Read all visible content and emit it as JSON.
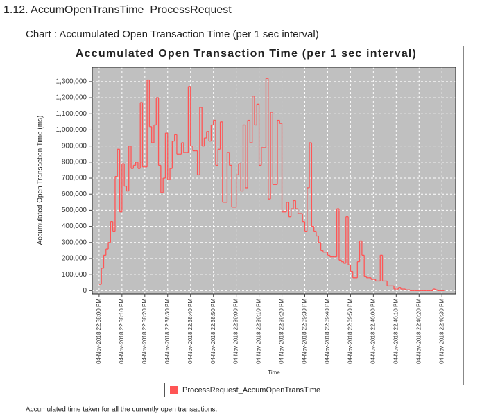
{
  "header": {
    "title": "1.12. AccumOpenTransTime_ProcessRequest"
  },
  "chart_heading": "Chart : Accumulated Open Transaction Time (per 1 sec interval)",
  "chart_data": {
    "type": "step",
    "title": "Accumulated Open Transaction Time (per 1 sec interval)",
    "x_label": "Time",
    "y_label": "Accumulated Open Transaction Time (ms)",
    "x": [
      "04-Nov-2018 22:38:00 PM",
      "04-Nov-2018 22:38:01 PM",
      "04-Nov-2018 22:38:02 PM",
      "04-Nov-2018 22:38:03 PM",
      "04-Nov-2018 22:38:04 PM",
      "04-Nov-2018 22:38:05 PM",
      "04-Nov-2018 22:38:06 PM",
      "04-Nov-2018 22:38:07 PM",
      "04-Nov-2018 22:38:08 PM",
      "04-Nov-2018 22:38:09 PM",
      "04-Nov-2018 22:38:10 PM",
      "04-Nov-2018 22:38:11 PM",
      "04-Nov-2018 22:38:12 PM",
      "04-Nov-2018 22:38:13 PM",
      "04-Nov-2018 22:38:14 PM",
      "04-Nov-2018 22:38:15 PM",
      "04-Nov-2018 22:38:16 PM",
      "04-Nov-2018 22:38:17 PM",
      "04-Nov-2018 22:38:18 PM",
      "04-Nov-2018 22:38:19 PM",
      "04-Nov-2018 22:38:20 PM",
      "04-Nov-2018 22:38:21 PM",
      "04-Nov-2018 22:38:22 PM",
      "04-Nov-2018 22:38:23 PM",
      "04-Nov-2018 22:38:24 PM",
      "04-Nov-2018 22:38:25 PM",
      "04-Nov-2018 22:38:26 PM",
      "04-Nov-2018 22:38:27 PM",
      "04-Nov-2018 22:38:28 PM",
      "04-Nov-2018 22:38:29 PM",
      "04-Nov-2018 22:38:30 PM",
      "04-Nov-2018 22:38:31 PM",
      "04-Nov-2018 22:38:32 PM",
      "04-Nov-2018 22:38:33 PM",
      "04-Nov-2018 22:38:34 PM",
      "04-Nov-2018 22:38:35 PM",
      "04-Nov-2018 22:38:36 PM",
      "04-Nov-2018 22:38:37 PM",
      "04-Nov-2018 22:38:38 PM",
      "04-Nov-2018 22:38:39 PM",
      "04-Nov-2018 22:38:40 PM",
      "04-Nov-2018 22:38:41 PM",
      "04-Nov-2018 22:38:42 PM",
      "04-Nov-2018 22:38:43 PM",
      "04-Nov-2018 22:38:44 PM",
      "04-Nov-2018 22:38:45 PM",
      "04-Nov-2018 22:38:46 PM",
      "04-Nov-2018 22:38:47 PM",
      "04-Nov-2018 22:38:48 PM",
      "04-Nov-2018 22:38:49 PM",
      "04-Nov-2018 22:38:50 PM",
      "04-Nov-2018 22:38:51 PM",
      "04-Nov-2018 22:38:52 PM",
      "04-Nov-2018 22:38:53 PM",
      "04-Nov-2018 22:38:54 PM",
      "04-Nov-2018 22:38:55 PM",
      "04-Nov-2018 22:38:56 PM",
      "04-Nov-2018 22:38:57 PM",
      "04-Nov-2018 22:38:58 PM",
      "04-Nov-2018 22:38:59 PM",
      "04-Nov-2018 22:39:00 PM",
      "04-Nov-2018 22:39:01 PM",
      "04-Nov-2018 22:39:02 PM",
      "04-Nov-2018 22:39:03 PM",
      "04-Nov-2018 22:39:04 PM",
      "04-Nov-2018 22:39:05 PM",
      "04-Nov-2018 22:39:06 PM",
      "04-Nov-2018 22:39:07 PM",
      "04-Nov-2018 22:39:08 PM",
      "04-Nov-2018 22:39:09 PM",
      "04-Nov-2018 22:39:10 PM",
      "04-Nov-2018 22:39:11 PM",
      "04-Nov-2018 22:39:12 PM",
      "04-Nov-2018 22:39:13 PM",
      "04-Nov-2018 22:39:14 PM",
      "04-Nov-2018 22:39:15 PM",
      "04-Nov-2018 22:39:16 PM",
      "04-Nov-2018 22:39:17 PM",
      "04-Nov-2018 22:39:18 PM",
      "04-Nov-2018 22:39:19 PM",
      "04-Nov-2018 22:39:20 PM",
      "04-Nov-2018 22:39:21 PM",
      "04-Nov-2018 22:39:22 PM",
      "04-Nov-2018 22:39:23 PM",
      "04-Nov-2018 22:39:24 PM",
      "04-Nov-2018 22:39:25 PM",
      "04-Nov-2018 22:39:26 PM",
      "04-Nov-2018 22:39:27 PM",
      "04-Nov-2018 22:39:28 PM",
      "04-Nov-2018 22:39:29 PM",
      "04-Nov-2018 22:39:30 PM",
      "04-Nov-2018 22:39:31 PM",
      "04-Nov-2018 22:39:32 PM",
      "04-Nov-2018 22:39:33 PM",
      "04-Nov-2018 22:39:34 PM",
      "04-Nov-2018 22:39:35 PM",
      "04-Nov-2018 22:39:36 PM",
      "04-Nov-2018 22:39:37 PM",
      "04-Nov-2018 22:39:38 PM",
      "04-Nov-2018 22:39:39 PM",
      "04-Nov-2018 22:39:40 PM",
      "04-Nov-2018 22:39:41 PM",
      "04-Nov-2018 22:39:42 PM",
      "04-Nov-2018 22:39:43 PM",
      "04-Nov-2018 22:39:44 PM",
      "04-Nov-2018 22:39:45 PM",
      "04-Nov-2018 22:39:46 PM",
      "04-Nov-2018 22:39:47 PM",
      "04-Nov-2018 22:39:48 PM",
      "04-Nov-2018 22:39:49 PM",
      "04-Nov-2018 22:39:50 PM",
      "04-Nov-2018 22:39:51 PM",
      "04-Nov-2018 22:39:52 PM",
      "04-Nov-2018 22:39:53 PM",
      "04-Nov-2018 22:39:54 PM",
      "04-Nov-2018 22:39:55 PM",
      "04-Nov-2018 22:39:56 PM",
      "04-Nov-2018 22:39:57 PM",
      "04-Nov-2018 22:39:58 PM",
      "04-Nov-2018 22:39:59 PM",
      "04-Nov-2018 22:40:00 PM",
      "04-Nov-2018 22:40:01 PM",
      "04-Nov-2018 22:40:02 PM",
      "04-Nov-2018 22:40:03 PM",
      "04-Nov-2018 22:40:04 PM",
      "04-Nov-2018 22:40:05 PM",
      "04-Nov-2018 22:40:06 PM",
      "04-Nov-2018 22:40:07 PM",
      "04-Nov-2018 22:40:08 PM",
      "04-Nov-2018 22:40:09 PM",
      "04-Nov-2018 22:40:10 PM",
      "04-Nov-2018 22:40:11 PM",
      "04-Nov-2018 22:40:12 PM",
      "04-Nov-2018 22:40:13 PM",
      "04-Nov-2018 22:40:14 PM",
      "04-Nov-2018 22:40:15 PM",
      "04-Nov-2018 22:40:16 PM",
      "04-Nov-2018 22:40:17 PM",
      "04-Nov-2018 22:40:18 PM",
      "04-Nov-2018 22:40:19 PM",
      "04-Nov-2018 22:40:20 PM",
      "04-Nov-2018 22:40:21 PM",
      "04-Nov-2018 22:40:22 PM",
      "04-Nov-2018 22:40:23 PM",
      "04-Nov-2018 22:40:24 PM",
      "04-Nov-2018 22:40:25 PM",
      "04-Nov-2018 22:40:26 PM",
      "04-Nov-2018 22:40:27 PM",
      "04-Nov-2018 22:40:28 PM",
      "04-Nov-2018 22:40:29 PM",
      "04-Nov-2018 22:40:30 PM"
    ],
    "series": [
      {
        "name": "ProcessRequest_AccumOpenTransTime",
        "color": "#ff5555",
        "values": [
          40000,
          140000,
          220000,
          260000,
          300000,
          430000,
          370000,
          710000,
          880000,
          490000,
          790000,
          650000,
          620000,
          900000,
          760000,
          780000,
          800000,
          760000,
          1170000,
          770000,
          770000,
          1310000,
          1020000,
          920000,
          1030000,
          1200000,
          780000,
          610000,
          700000,
          980000,
          690000,
          760000,
          930000,
          970000,
          850000,
          850000,
          920000,
          860000,
          860000,
          1270000,
          900000,
          870000,
          870000,
          720000,
          1140000,
          900000,
          950000,
          990000,
          930000,
          1030000,
          1060000,
          780000,
          880000,
          1050000,
          550000,
          550000,
          860000,
          780000,
          520000,
          520000,
          720000,
          790000,
          620000,
          1030000,
          640000,
          1060000,
          920000,
          1210000,
          1030000,
          1160000,
          780000,
          890000,
          890000,
          1320000,
          570000,
          1110000,
          660000,
          660000,
          1060000,
          1040000,
          490000,
          490000,
          550000,
          460000,
          510000,
          560000,
          510000,
          480000,
          480000,
          430000,
          370000,
          640000,
          920000,
          400000,
          370000,
          340000,
          300000,
          250000,
          240000,
          240000,
          220000,
          210000,
          210000,
          210000,
          510000,
          190000,
          180000,
          170000,
          460000,
          160000,
          120000,
          80000,
          80000,
          180000,
          310000,
          220000,
          90000,
          80000,
          80000,
          70000,
          70000,
          60000,
          60000,
          220000,
          60000,
          60000,
          30000,
          30000,
          30000,
          10000,
          10000,
          20000,
          10000,
          10000,
          5000,
          5000,
          0,
          0,
          0,
          0,
          0,
          0,
          0,
          0,
          0,
          0,
          10000,
          5000,
          0,
          0,
          0
        ]
      }
    ],
    "xlim": [
      "04-Nov-2018 22:37:57 PM",
      "04-Nov-2018 22:40:36 PM"
    ],
    "xticks": [
      "04-Nov-2018 22:38:00 PM",
      "04-Nov-2018 22:38:10 PM",
      "04-Nov-2018 22:38:20 PM",
      "04-Nov-2018 22:38:30 PM",
      "04-Nov-2018 22:38:40 PM",
      "04-Nov-2018 22:38:50 PM",
      "04-Nov-2018 22:39:00 PM",
      "04-Nov-2018 22:39:10 PM",
      "04-Nov-2018 22:39:20 PM",
      "04-Nov-2018 22:39:30 PM",
      "04-Nov-2018 22:39:40 PM",
      "04-Nov-2018 22:39:50 PM",
      "04-Nov-2018 22:40:00 PM",
      "04-Nov-2018 22:40:10 PM",
      "04-Nov-2018 22:40:20 PM",
      "04-Nov-2018 22:40:30 PM"
    ],
    "ylim": [
      -20000,
      1390000
    ],
    "yticks": [
      0,
      {
        "value": 100000,
        "label": "100,000"
      },
      {
        "value": 200000,
        "label": "200,000"
      },
      {
        "value": 300000,
        "label": "300,000"
      },
      {
        "value": 400000,
        "label": "400,000"
      },
      {
        "value": 500000,
        "label": "500,000"
      },
      {
        "value": 600000,
        "label": "600,000"
      },
      {
        "value": 700000,
        "label": "700,000"
      },
      {
        "value": 800000,
        "label": "800,000"
      },
      {
        "value": 900000,
        "label": "900,000"
      },
      {
        "value": 1000000,
        "label": "1,000,000"
      },
      {
        "value": 1100000,
        "label": "1,100,000"
      },
      {
        "value": 1200000,
        "label": "1,200,000"
      },
      {
        "value": 1300000,
        "label": "1,300,000"
      }
    ],
    "grid": true,
    "legend": "bottom"
  },
  "caption": "Accumulated time taken for all the currently open transactions."
}
